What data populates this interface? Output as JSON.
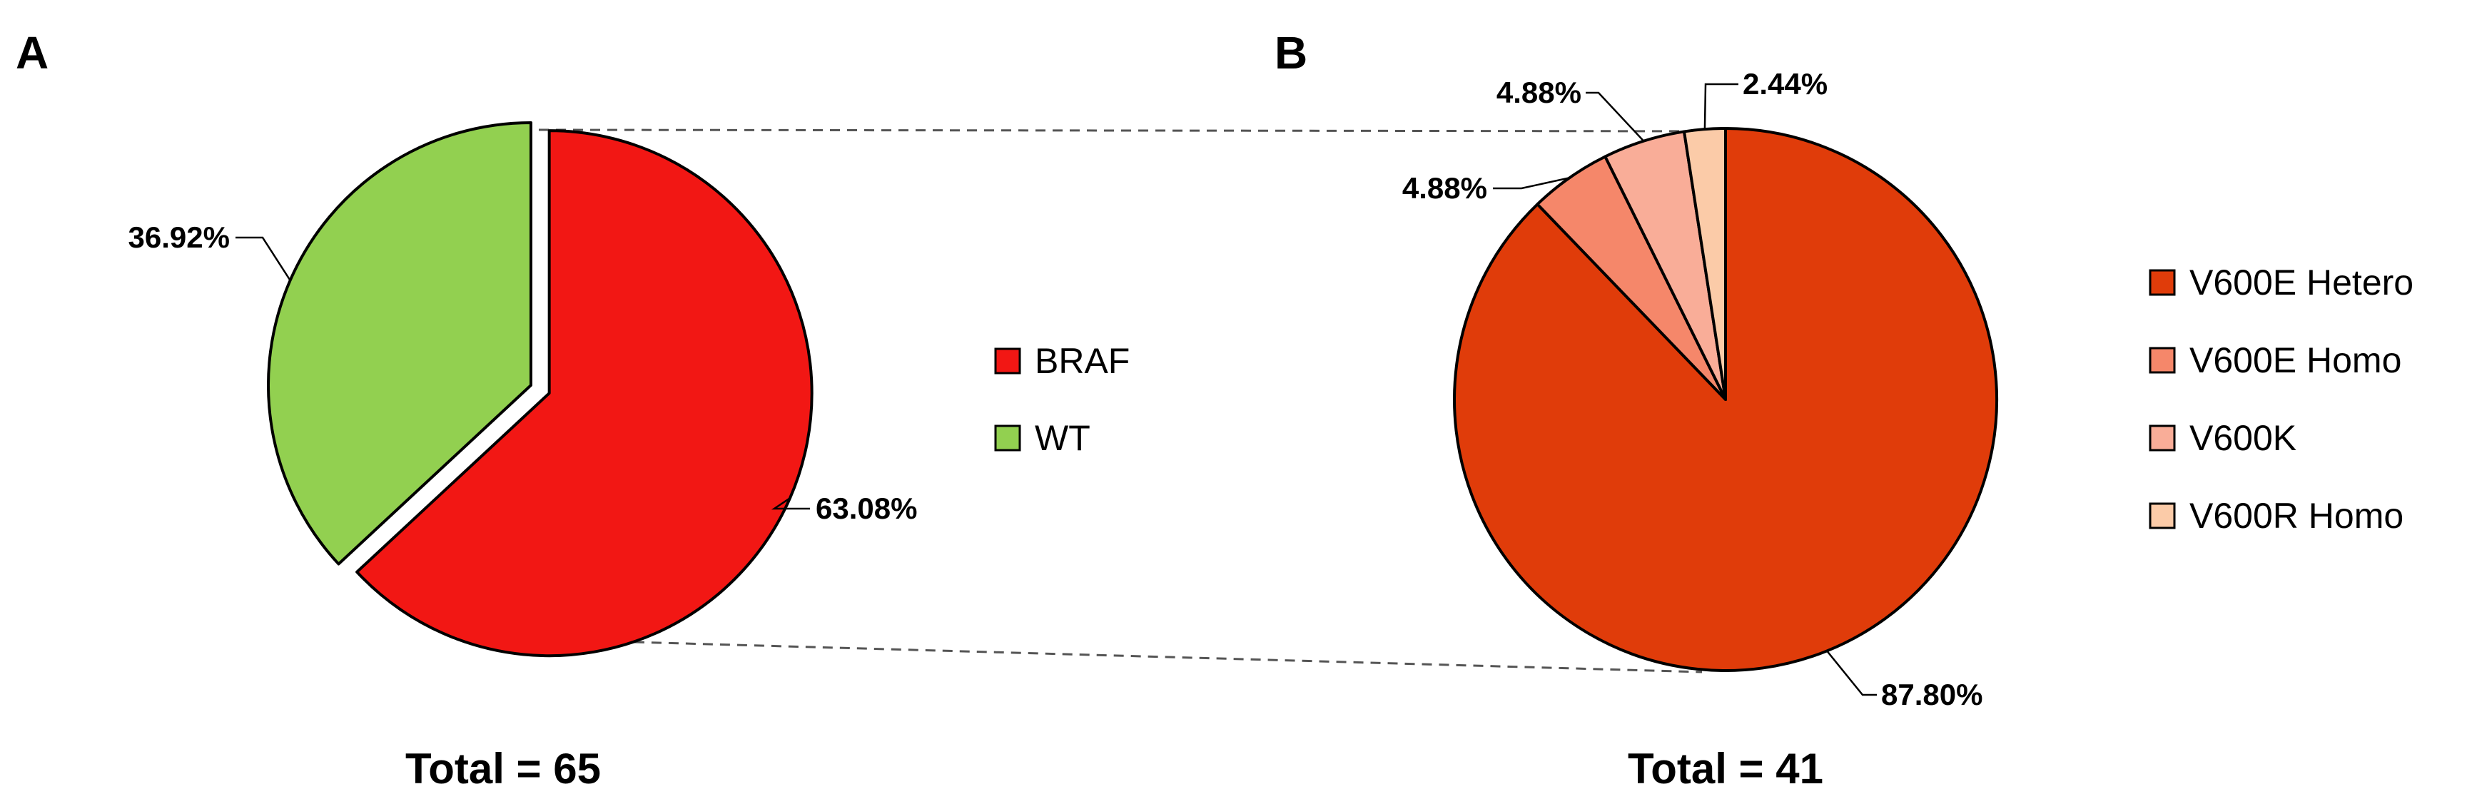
{
  "chart_data": [
    {
      "type": "pie",
      "panel_label": "A",
      "title": "",
      "total_label": "Total = 65",
      "slices": [
        {
          "name": "BRAF",
          "value": 63.08,
          "label": "63.08%",
          "color": "#f21714",
          "exploded": true
        },
        {
          "name": "WT",
          "value": 36.92,
          "label": "36.92%",
          "color": "#92d050",
          "exploded": false
        }
      ],
      "legend": {
        "position": "right",
        "entries": [
          "BRAF",
          "WT"
        ]
      }
    },
    {
      "type": "pie",
      "panel_label": "B",
      "title": "",
      "total_label": "Total = 41",
      "slices": [
        {
          "name": "V600E Hetero",
          "value": 87.8,
          "label": "87.80%",
          "color": "#e03c0a"
        },
        {
          "name": "V600E Homo",
          "value": 4.88,
          "label": "4.88%",
          "color": "#f5876a"
        },
        {
          "name": "V600K",
          "value": 4.88,
          "label": "4.88%",
          "color": "#f9ad98"
        },
        {
          "name": "V600R Homo",
          "value": 2.44,
          "label": "2.44%",
          "color": "#fbcba8"
        }
      ],
      "legend": {
        "position": "right",
        "entries": [
          "V600E Hetero",
          "V600E Homo",
          "V600K",
          "V600R Homo"
        ]
      }
    }
  ]
}
